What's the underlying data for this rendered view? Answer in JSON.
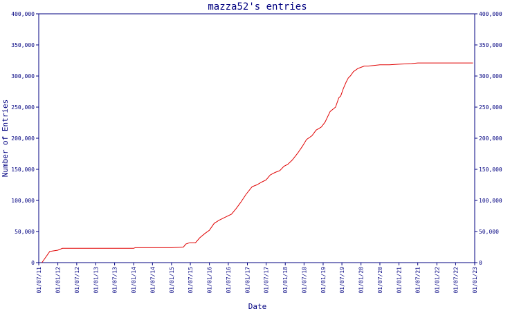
{
  "chart_data": {
    "type": "line",
    "title": "mazza52's entries",
    "xlabel": "Date",
    "ylabel": "Number of Entries",
    "ylim": [
      0,
      400000
    ],
    "xlim": [
      "2011-07-01",
      "2023-01-01"
    ],
    "grid": false,
    "legend": "none",
    "colors": {
      "axis": "#000080",
      "line": "#e00000",
      "background": "#ffffff"
    },
    "y_ticks": [
      0,
      50000,
      100000,
      150000,
      200000,
      250000,
      300000,
      350000,
      400000
    ],
    "y_tick_labels": [
      "0",
      "50,000",
      "100,000",
      "150,000",
      "200,000",
      "250,000",
      "300,000",
      "350,000",
      "400,000"
    ],
    "x_ticks": [
      "2011-07-01",
      "2012-01-01",
      "2012-07-01",
      "2013-01-01",
      "2013-07-01",
      "2014-01-01",
      "2014-07-01",
      "2015-01-01",
      "2015-07-01",
      "2016-01-01",
      "2016-07-01",
      "2017-01-01",
      "2017-07-01",
      "2018-01-01",
      "2018-07-01",
      "2019-01-01",
      "2019-07-01",
      "2020-01-01",
      "2020-07-01",
      "2021-01-01",
      "2021-07-01",
      "2022-01-01",
      "2022-07-01",
      "2023-01-01"
    ],
    "x_tick_labels": [
      "01/07/11",
      "01/01/12",
      "01/07/12",
      "01/01/13",
      "01/07/13",
      "01/01/14",
      "01/07/14",
      "01/01/15",
      "01/07/15",
      "01/01/16",
      "01/07/16",
      "01/01/17",
      "01/07/17",
      "01/01/18",
      "01/07/18",
      "01/01/19",
      "01/07/19",
      "01/01/20",
      "01/07/20",
      "01/01/21",
      "01/07/21",
      "01/01/22",
      "01/07/22",
      "01/01/23"
    ],
    "series": [
      {
        "x": [
          "2011-08-01",
          "2011-10-15",
          "2011-11-25",
          "2012-01-01",
          "2012-02-15",
          "2012-04-01",
          "2013-01-01",
          "2014-01-01",
          "2014-01-15",
          "2015-01-01",
          "2015-04-25",
          "2015-05-20",
          "2015-06-25",
          "2015-08-20",
          "2015-09-30",
          "2015-11-20",
          "2016-01-01",
          "2016-02-15",
          "2016-04-01",
          "2016-06-01",
          "2016-08-01",
          "2016-09-15",
          "2016-10-25",
          "2016-12-20",
          "2017-02-15",
          "2017-04-01",
          "2017-05-25",
          "2017-06-30",
          "2017-08-10",
          "2017-09-25",
          "2017-11-10",
          "2017-12-20",
          "2018-01-25",
          "2018-03-10",
          "2018-05-01",
          "2018-06-15",
          "2018-07-25",
          "2018-09-15",
          "2018-10-25",
          "2018-12-15",
          "2019-01-20",
          "2019-03-10",
          "2019-05-01",
          "2019-06-01",
          "2019-06-20",
          "2019-07-15",
          "2019-08-10",
          "2019-09-01",
          "2019-09-20",
          "2019-10-20",
          "2019-12-01",
          "2020-01-01",
          "2020-02-01",
          "2020-03-10",
          "2020-05-01",
          "2020-07-01",
          "2020-10-01",
          "2021-01-01",
          "2021-05-01",
          "2021-07-01",
          "2022-01-01",
          "2022-07-01",
          "2022-12-15"
        ],
        "values": [
          0,
          18000,
          19000,
          20000,
          23000,
          23000,
          23000,
          23000,
          24000,
          24000,
          25000,
          30000,
          32000,
          32000,
          40000,
          47000,
          52000,
          63000,
          68000,
          73000,
          78000,
          87000,
          96000,
          110000,
          122000,
          125000,
          130000,
          133000,
          141000,
          145000,
          148000,
          155000,
          158000,
          165000,
          176000,
          187000,
          198000,
          204000,
          213000,
          218000,
          226000,
          243000,
          250000,
          265000,
          268000,
          280000,
          290000,
          297000,
          300000,
          307000,
          312000,
          314000,
          316000,
          316000,
          317000,
          318000,
          318000,
          319000,
          320000,
          321000,
          321000,
          321000,
          321000
        ]
      }
    ]
  }
}
